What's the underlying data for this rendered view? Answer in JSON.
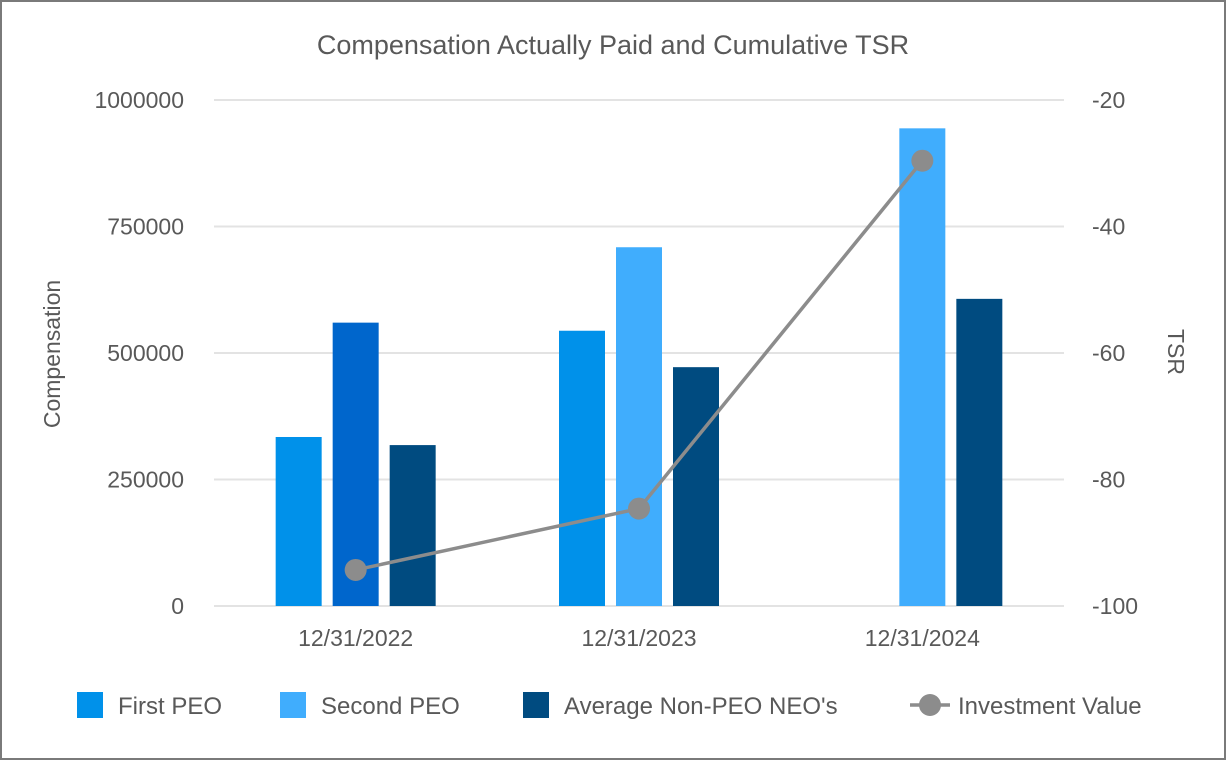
{
  "chart_data": {
    "type": "bar",
    "title": "Compensation Actually Paid and Cumulative TSR",
    "ylabel": "Compensation",
    "y2label": "TSR",
    "xlabel": "",
    "categories": [
      "12/31/2022",
      "12/31/2023",
      "12/31/2024"
    ],
    "ylim": [
      0,
      1000000
    ],
    "y_ticks": [
      "0",
      "250000",
      "500000",
      "750000",
      "1000000"
    ],
    "y2lim": [
      -100,
      -20
    ],
    "y2_ticks": [
      "-100",
      "-80",
      "-60",
      "-40",
      "-20"
    ],
    "grid": true,
    "legend_position": "bottom",
    "series": [
      {
        "name": "First PEO",
        "type": "bar",
        "axis": "left",
        "color": "#0091EA",
        "values": [
          334000,
          544000,
          null
        ]
      },
      {
        "name": "Second PEO",
        "type": "bar",
        "axis": "left",
        "color": "#40ADFD",
        "color_overrides": [
          "#0066CC",
          null,
          null
        ],
        "values": [
          560000,
          709000,
          944000
        ]
      },
      {
        "name": "Average Non-PEO NEO's",
        "type": "bar",
        "axis": "left",
        "color": "#004B80",
        "values": [
          318000,
          472000,
          607000
        ]
      },
      {
        "name": "Investment Value",
        "type": "line",
        "axis": "right",
        "color": "#8C8C8C",
        "values": [
          -94.3,
          -84.6,
          -29.6
        ]
      }
    ]
  }
}
